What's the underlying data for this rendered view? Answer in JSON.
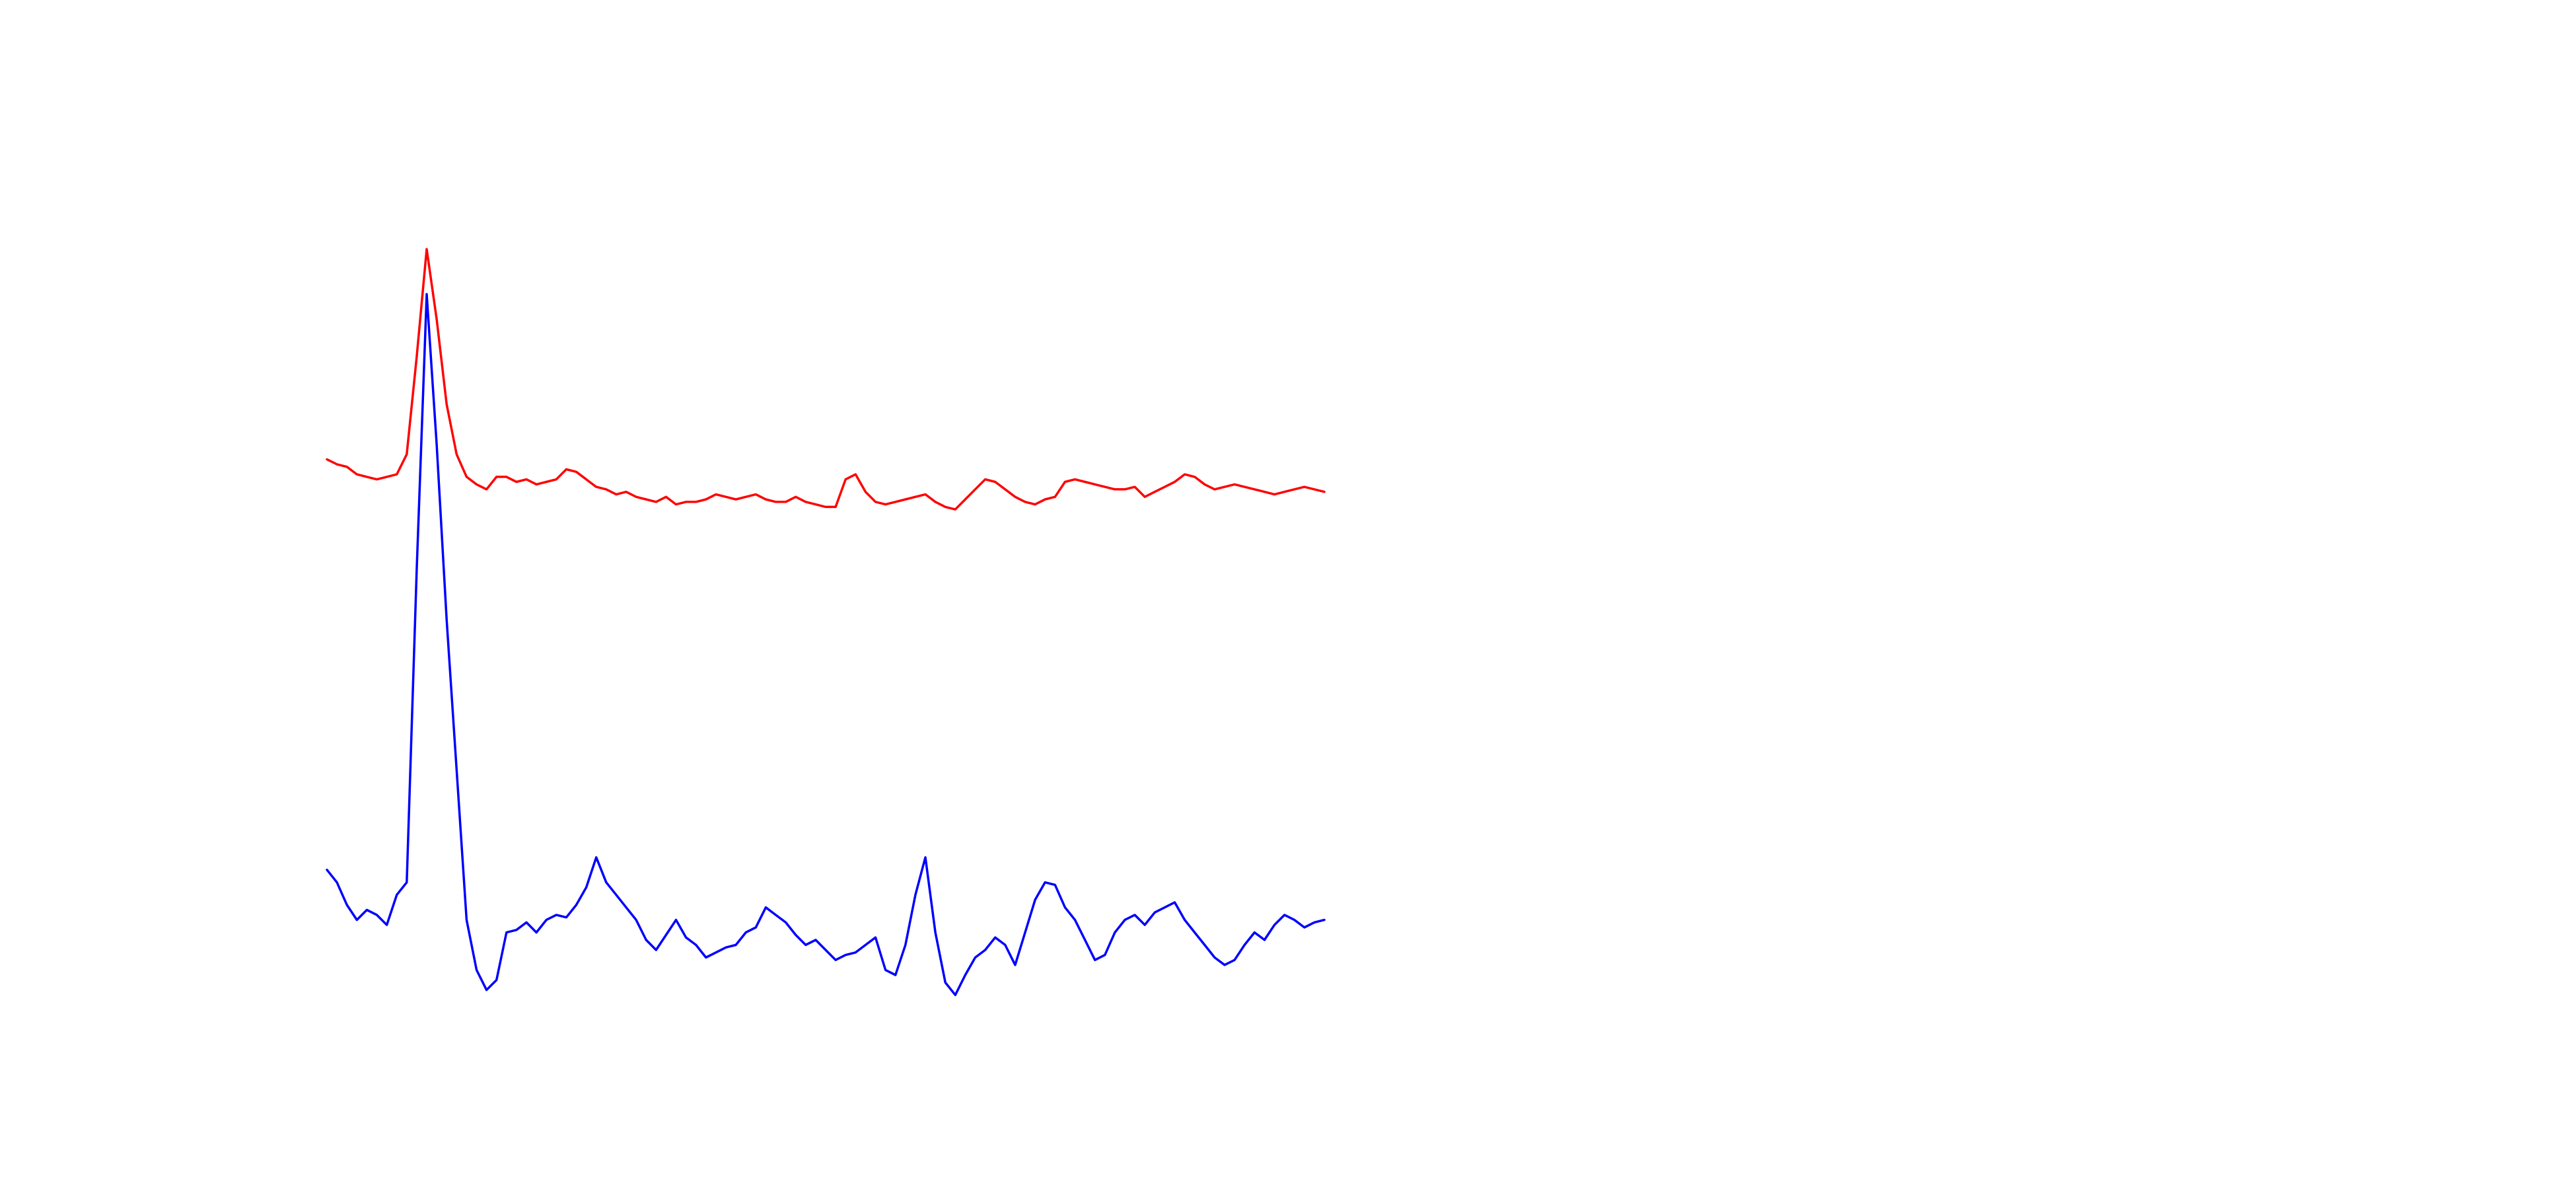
{
  "chart_data": {
    "type": "line",
    "title": "",
    "xlabel": "",
    "ylabel": "",
    "axes_visible": false,
    "grid": false,
    "legend": "none",
    "x": [
      0,
      1,
      2,
      3,
      4,
      5,
      6,
      7,
      8,
      9,
      10,
      11,
      12,
      13,
      14,
      15,
      16,
      17,
      18,
      19,
      20,
      21,
      22,
      23,
      24,
      25,
      26,
      27,
      28,
      29,
      30,
      31,
      32,
      33,
      34,
      35,
      36,
      37,
      38,
      39,
      40,
      41,
      42,
      43,
      44,
      45,
      46,
      47,
      48,
      49,
      50,
      51,
      52,
      53,
      54,
      55,
      56,
      57,
      58,
      59,
      60,
      61,
      62,
      63,
      64,
      65,
      66,
      67,
      68,
      69,
      70,
      71,
      72,
      73,
      74,
      75,
      76,
      77,
      78,
      79,
      80,
      81,
      82,
      83,
      84,
      85,
      86,
      87,
      88,
      89,
      90,
      91,
      92,
      93,
      94,
      95,
      96,
      97,
      98,
      99,
      100
    ],
    "series": [
      {
        "color": "#ff0000",
        "values": [
          1.64,
          1.62,
          1.61,
          1.58,
          1.57,
          1.56,
          1.57,
          1.58,
          1.66,
          2.05,
          2.48,
          2.2,
          1.86,
          1.66,
          1.57,
          1.54,
          1.52,
          1.57,
          1.57,
          1.55,
          1.56,
          1.54,
          1.55,
          1.56,
          1.6,
          1.59,
          1.56,
          1.53,
          1.52,
          1.5,
          1.51,
          1.49,
          1.48,
          1.47,
          1.49,
          1.46,
          1.47,
          1.47,
          1.48,
          1.5,
          1.49,
          1.48,
          1.49,
          1.5,
          1.48,
          1.47,
          1.47,
          1.49,
          1.47,
          1.46,
          1.45,
          1.45,
          1.56,
          1.58,
          1.51,
          1.47,
          1.46,
          1.47,
          1.48,
          1.49,
          1.5,
          1.47,
          1.45,
          1.44,
          1.48,
          1.52,
          1.56,
          1.55,
          1.52,
          1.49,
          1.47,
          1.46,
          1.48,
          1.49,
          1.55,
          1.56,
          1.55,
          1.54,
          1.53,
          1.52,
          1.52,
          1.53,
          1.49,
          1.51,
          1.53,
          1.55,
          1.58,
          1.57,
          1.54,
          1.52,
          1.53,
          1.54,
          1.53,
          1.52,
          1.51,
          1.5,
          1.51,
          1.52,
          1.53,
          1.52,
          1.51
        ]
      },
      {
        "color": "#0000ff",
        "values": [
          0.0,
          -0.05,
          -0.14,
          -0.2,
          -0.16,
          -0.18,
          -0.22,
          -0.1,
          -0.05,
          1.2,
          2.3,
          1.7,
          1.0,
          0.4,
          -0.2,
          -0.4,
          -0.48,
          -0.44,
          -0.25,
          -0.24,
          -0.21,
          -0.25,
          -0.2,
          -0.18,
          -0.19,
          -0.14,
          -0.07,
          0.05,
          -0.05,
          -0.1,
          -0.15,
          -0.2,
          -0.28,
          -0.32,
          -0.26,
          -0.2,
          -0.27,
          -0.3,
          -0.35,
          -0.33,
          -0.31,
          -0.3,
          -0.25,
          -0.23,
          -0.15,
          -0.18,
          -0.21,
          -0.26,
          -0.3,
          -0.28,
          -0.32,
          -0.36,
          -0.34,
          -0.33,
          -0.3,
          -0.27,
          -0.4,
          -0.42,
          -0.3,
          -0.1,
          0.05,
          -0.25,
          -0.45,
          -0.5,
          -0.42,
          -0.35,
          -0.32,
          -0.27,
          -0.3,
          -0.38,
          -0.25,
          -0.12,
          -0.05,
          -0.06,
          -0.15,
          -0.2,
          -0.28,
          -0.36,
          -0.34,
          -0.25,
          -0.2,
          -0.18,
          -0.22,
          -0.17,
          -0.15,
          -0.13,
          -0.2,
          -0.25,
          -0.3,
          -0.35,
          -0.38,
          -0.36,
          -0.3,
          -0.25,
          -0.28,
          -0.22,
          -0.18,
          -0.2,
          -0.23,
          -0.21,
          -0.2
        ]
      }
    ],
    "ylim": [
      -0.8,
      3.0
    ]
  }
}
